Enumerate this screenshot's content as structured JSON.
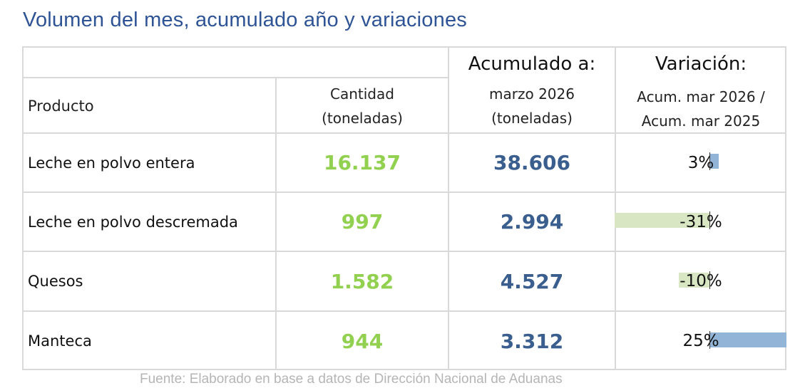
{
  "title": "Volumen del mes, acumulado año y variaciones",
  "header": {
    "producto": "Producto",
    "cantidad_line1": "Cantidad",
    "cantidad_line2": "(toneladas)",
    "acumulado_top": "Acumulado a:",
    "acumulado_line1": "marzo 2026",
    "acumulado_line2": "(toneladas)",
    "variacion_top": "Variación:",
    "variacion_line1": "Acum. mar 2026 /",
    "variacion_line2": "Acum. mar 2025"
  },
  "rows": [
    {
      "producto": "Leche en polvo entera",
      "cantidad": "16.137",
      "acumulado": "38.606",
      "variacion": "3%",
      "variacion_value": 3
    },
    {
      "producto": "Leche en polvo descremada",
      "cantidad": "997",
      "acumulado": "2.994",
      "variacion": "-31%",
      "variacion_value": -31
    },
    {
      "producto": "Quesos",
      "cantidad": "1.582",
      "acumulado": "4.527",
      "variacion": "-10%",
      "variacion_value": -10
    },
    {
      "producto": "Manteca",
      "cantidad": "944",
      "acumulado": "3.312",
      "variacion": "25%",
      "variacion_value": 25
    }
  ],
  "colors": {
    "title": "#2f5496",
    "cantidad": "#92d050",
    "acumulado": "#3a5f8f",
    "bar_positive": "#92b4d6",
    "bar_negative": "#d8e6c3"
  },
  "footer": "Fuente: Elaborado en base a datos de Dirección Nacional de Aduanas"
}
